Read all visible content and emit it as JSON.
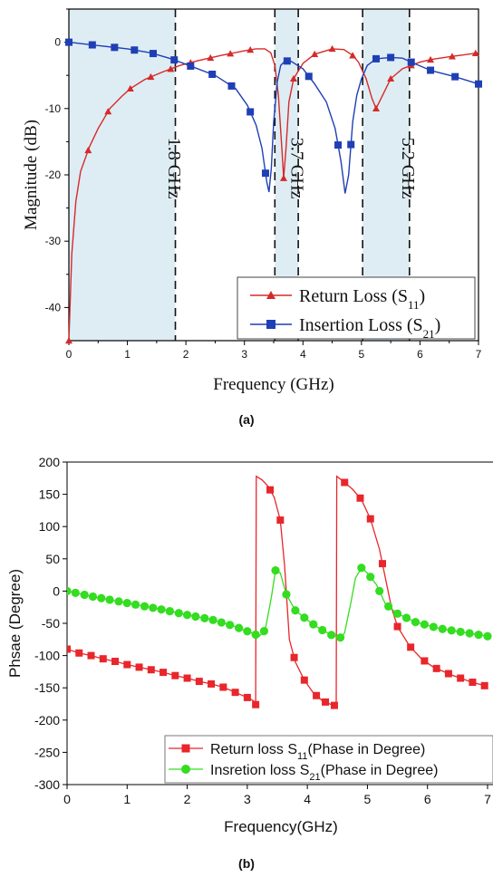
{
  "chart_data": [
    {
      "type": "line",
      "panel_label": "(a)",
      "xlabel": "Frequency (GHz)",
      "ylabel": "Magnitude (dB)",
      "xlim": [
        0,
        7
      ],
      "ylim": [
        -45,
        5
      ],
      "x_ticks": [
        0,
        1,
        2,
        3,
        4,
        5,
        6,
        7
      ],
      "y_ticks": [
        0,
        -10,
        -20,
        -30,
        -40
      ],
      "shaded_bands": [
        [
          0,
          1.82
        ],
        [
          3.52,
          3.92
        ],
        [
          5.02,
          5.82
        ]
      ],
      "markers": [
        {
          "x": 1.82,
          "label": "1.8 GHz"
        },
        {
          "x": 3.52,
          "label": ""
        },
        {
          "x": 3.92,
          "label": "3.7 GHz"
        },
        {
          "x": 5.02,
          "label": ""
        },
        {
          "x": 5.82,
          "label": "5.2 GHz"
        }
      ],
      "legend_position": "bottom-right",
      "series": [
        {
          "name": "Return Loss (S11)",
          "legend_text": "Return Loss (S",
          "legend_sub": "11",
          "legend_close": ")",
          "color": "#d62a2a",
          "marker": "triangle",
          "points": [
            [
              0,
              -45
            ],
            [
              0.05,
              -32
            ],
            [
              0.12,
              -24
            ],
            [
              0.2,
              -19.5
            ],
            [
              0.35,
              -15.8
            ],
            [
              0.5,
              -13
            ],
            [
              0.7,
              -10
            ],
            [
              0.9,
              -8.2
            ],
            [
              1.05,
              -7
            ],
            [
              1.3,
              -5.6
            ],
            [
              1.6,
              -4.5
            ],
            [
              1.9,
              -3.5
            ],
            [
              2.2,
              -2.8
            ],
            [
              2.6,
              -2
            ],
            [
              3.0,
              -1.3
            ],
            [
              3.2,
              -1
            ],
            [
              3.35,
              -1
            ],
            [
              3.45,
              -1.6
            ],
            [
              3.52,
              -3.5
            ],
            [
              3.58,
              -8
            ],
            [
              3.64,
              -16
            ],
            [
              3.67,
              -20.5
            ],
            [
              3.71,
              -16
            ],
            [
              3.76,
              -9
            ],
            [
              3.84,
              -5.5
            ],
            [
              4.0,
              -3.2
            ],
            [
              4.2,
              -1.8
            ],
            [
              4.5,
              -1
            ],
            [
              4.7,
              -1.1
            ],
            [
              4.85,
              -2
            ],
            [
              4.95,
              -3
            ],
            [
              5.08,
              -5.5
            ],
            [
              5.18,
              -8.5
            ],
            [
              5.25,
              -10
            ],
            [
              5.35,
              -8.2
            ],
            [
              5.5,
              -5.5
            ],
            [
              5.7,
              -4
            ],
            [
              6.0,
              -3
            ],
            [
              6.2,
              -2.6
            ],
            [
              6.5,
              -2.2
            ],
            [
              7.0,
              -1.6
            ]
          ],
          "marker_x": [
            0,
            0.33,
            0.67,
            1.05,
            1.4,
            1.74,
            2.08,
            2.42,
            2.76,
            3.1,
            3.67,
            3.84,
            4.2,
            4.5,
            4.85,
            5.25,
            5.5,
            5.85,
            6.18,
            6.55,
            6.95
          ]
        },
        {
          "name": "Insertion Loss (S21)",
          "legend_text": "Insertion Loss (S",
          "legend_sub": "21",
          "legend_close": ")",
          "color": "#1f3fb5",
          "marker": "square",
          "points": [
            [
              0,
              0
            ],
            [
              0.5,
              -0.5
            ],
            [
              1.0,
              -1
            ],
            [
              1.4,
              -1.6
            ],
            [
              1.75,
              -2.5
            ],
            [
              2.05,
              -3.5
            ],
            [
              2.5,
              -5
            ],
            [
              2.85,
              -7
            ],
            [
              3.05,
              -9.5
            ],
            [
              3.2,
              -12.5
            ],
            [
              3.3,
              -16
            ],
            [
              3.38,
              -21
            ],
            [
              3.42,
              -22.6
            ],
            [
              3.46,
              -19
            ],
            [
              3.5,
              -12
            ],
            [
              3.56,
              -6
            ],
            [
              3.62,
              -3.5
            ],
            [
              3.7,
              -2.8
            ],
            [
              3.8,
              -2.9
            ],
            [
              4.0,
              -4
            ],
            [
              4.2,
              -6.3
            ],
            [
              4.4,
              -9
            ],
            [
              4.55,
              -13
            ],
            [
              4.65,
              -18
            ],
            [
              4.72,
              -22.8
            ],
            [
              4.78,
              -20
            ],
            [
              4.85,
              -12
            ],
            [
              4.92,
              -8
            ],
            [
              5.0,
              -5.5
            ],
            [
              5.1,
              -3.5
            ],
            [
              5.25,
              -2.5
            ],
            [
              5.5,
              -2.3
            ],
            [
              5.7,
              -2.4
            ],
            [
              5.9,
              -3.2
            ],
            [
              6.2,
              -4.3
            ],
            [
              6.6,
              -5.2
            ],
            [
              7.0,
              -6.3
            ]
          ],
          "marker_x": [
            0,
            0.4,
            0.78,
            1.12,
            1.44,
            1.8,
            2.08,
            2.45,
            2.78,
            3.1,
            3.36,
            3.73,
            4.1,
            4.6,
            4.82,
            5.25,
            5.5,
            5.85,
            6.18,
            6.6,
            7.0
          ]
        }
      ]
    },
    {
      "type": "line",
      "panel_label": "(b)",
      "xlabel": "Frequency(GHz)",
      "ylabel": "Phsae (Degree)",
      "xlim": [
        0,
        7
      ],
      "ylim": [
        -300,
        200
      ],
      "x_ticks": [
        0,
        1,
        2,
        3,
        4,
        5,
        6,
        7
      ],
      "y_ticks": [
        200,
        150,
        100,
        50,
        0,
        -50,
        -100,
        -150,
        -200,
        -250,
        -300
      ],
      "legend_position": "bottom-right",
      "series": [
        {
          "name": "Return loss S11(Phase in Degree)",
          "legend_text": "Return loss S",
          "legend_sub": "11",
          "legend_close": "(Phase in Degree)",
          "color": "#e8262b",
          "marker": "square",
          "points": [
            [
              0,
              -90
            ],
            [
              0.2,
              -96
            ],
            [
              0.4,
              -100
            ],
            [
              0.6,
              -105
            ],
            [
              0.8,
              -109
            ],
            [
              1.0,
              -114
            ],
            [
              1.2,
              -118
            ],
            [
              1.4,
              -122
            ],
            [
              1.6,
              -126
            ],
            [
              1.8,
              -131
            ],
            [
              2.0,
              -135
            ],
            [
              2.2,
              -140
            ],
            [
              2.4,
              -144
            ],
            [
              2.6,
              -149
            ],
            [
              2.8,
              -157
            ],
            [
              3.0,
              -165
            ],
            [
              3.1,
              -170
            ],
            [
              3.14,
              -176
            ],
            [
              3.15,
              178
            ],
            [
              3.25,
              172
            ],
            [
              3.35,
              162
            ],
            [
              3.45,
              145
            ],
            [
              3.55,
              110
            ],
            [
              3.62,
              40
            ],
            [
              3.7,
              -75
            ],
            [
              3.8,
              -110
            ],
            [
              3.95,
              -138
            ],
            [
              4.1,
              -158
            ],
            [
              4.25,
              -170
            ],
            [
              4.4,
              -176
            ],
            [
              4.48,
              -178
            ],
            [
              4.49,
              178
            ],
            [
              4.6,
              170
            ],
            [
              4.75,
              158
            ],
            [
              4.9,
              142
            ],
            [
              5.05,
              112
            ],
            [
              5.2,
              65
            ],
            [
              5.3,
              20
            ],
            [
              5.4,
              -25
            ],
            [
              5.5,
              -55
            ],
            [
              5.7,
              -85
            ],
            [
              5.9,
              -105
            ],
            [
              6.1,
              -118
            ],
            [
              6.4,
              -130
            ],
            [
              6.7,
              -140
            ],
            [
              7.0,
              -148
            ]
          ],
          "marker_x": [
            0,
            0.2,
            0.4,
            0.6,
            0.8,
            1.0,
            1.2,
            1.4,
            1.6,
            1.8,
            2.0,
            2.2,
            2.4,
            2.6,
            2.8,
            3.0,
            3.14,
            3.38,
            3.55,
            3.78,
            3.95,
            4.15,
            4.3,
            4.45,
            4.62,
            4.88,
            5.05,
            5.25,
            5.5,
            5.72,
            5.95,
            6.15,
            6.35,
            6.55,
            6.75,
            6.95
          ]
        },
        {
          "name": "Insretion loss S21(Phase in Degree)",
          "legend_text": "Insretion loss S",
          "legend_sub": "21",
          "legend_close": "(Phase in Degree)",
          "color": "#33dd1f",
          "marker": "circle",
          "points": [
            [
              0,
              0
            ],
            [
              0.4,
              -8
            ],
            [
              0.8,
              -15
            ],
            [
              1.2,
              -22
            ],
            [
              1.6,
              -29
            ],
            [
              2.0,
              -37
            ],
            [
              2.4,
              -44
            ],
            [
              2.8,
              -55
            ],
            [
              3.1,
              -66
            ],
            [
              3.2,
              -70
            ],
            [
              3.3,
              -60
            ],
            [
              3.4,
              -10
            ],
            [
              3.47,
              32
            ],
            [
              3.55,
              28
            ],
            [
              3.65,
              -5
            ],
            [
              3.8,
              -30
            ],
            [
              4.0,
              -45
            ],
            [
              4.2,
              -58
            ],
            [
              4.4,
              -68
            ],
            [
              4.55,
              -72
            ],
            [
              4.62,
              -65
            ],
            [
              4.72,
              -20
            ],
            [
              4.8,
              20
            ],
            [
              4.9,
              36
            ],
            [
              5.0,
              28
            ],
            [
              5.15,
              10
            ],
            [
              5.3,
              -20
            ],
            [
              5.5,
              -35
            ],
            [
              5.8,
              -48
            ],
            [
              6.2,
              -58
            ],
            [
              6.6,
              -64
            ],
            [
              7.0,
              -70
            ]
          ],
          "marker_x": [
            0,
            0.14,
            0.29,
            0.43,
            0.57,
            0.71,
            0.86,
            1.0,
            1.14,
            1.29,
            1.43,
            1.57,
            1.71,
            1.86,
            2.0,
            2.14,
            2.29,
            2.43,
            2.57,
            2.71,
            2.86,
            3.0,
            3.14,
            3.28,
            3.47,
            3.65,
            3.8,
            3.95,
            4.1,
            4.25,
            4.4,
            4.55,
            4.9,
            5.05,
            5.2,
            5.35,
            5.5,
            5.65,
            5.8,
            5.95,
            6.1,
            6.25,
            6.4,
            6.55,
            6.7,
            6.85,
            7.0
          ]
        }
      ]
    }
  ]
}
